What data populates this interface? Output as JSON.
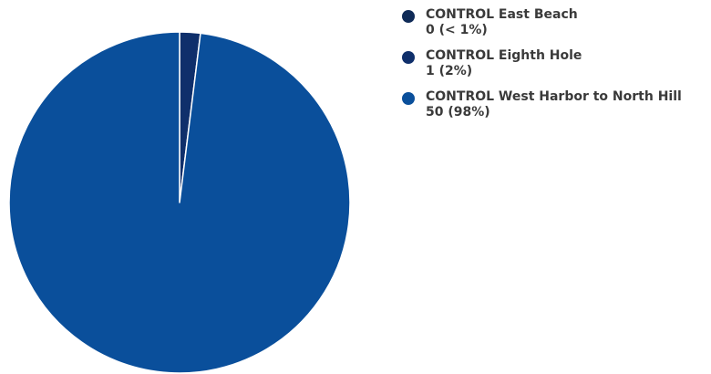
{
  "chart_data": {
    "type": "pie",
    "title": "",
    "categories": [
      "CONTROL East Beach",
      "CONTROL Eighth Hole",
      "CONTROL West Harbor to North Hill"
    ],
    "values": [
      0,
      1,
      50
    ],
    "value_labels": [
      "0 (< 1%)",
      "1 (2%)",
      "50 (98%)"
    ],
    "colors": [
      "#0f2a57",
      "#0f2f6b",
      "#0a4f9b"
    ],
    "slice_border_color": "#ffffff",
    "legend_position": "top-right"
  }
}
